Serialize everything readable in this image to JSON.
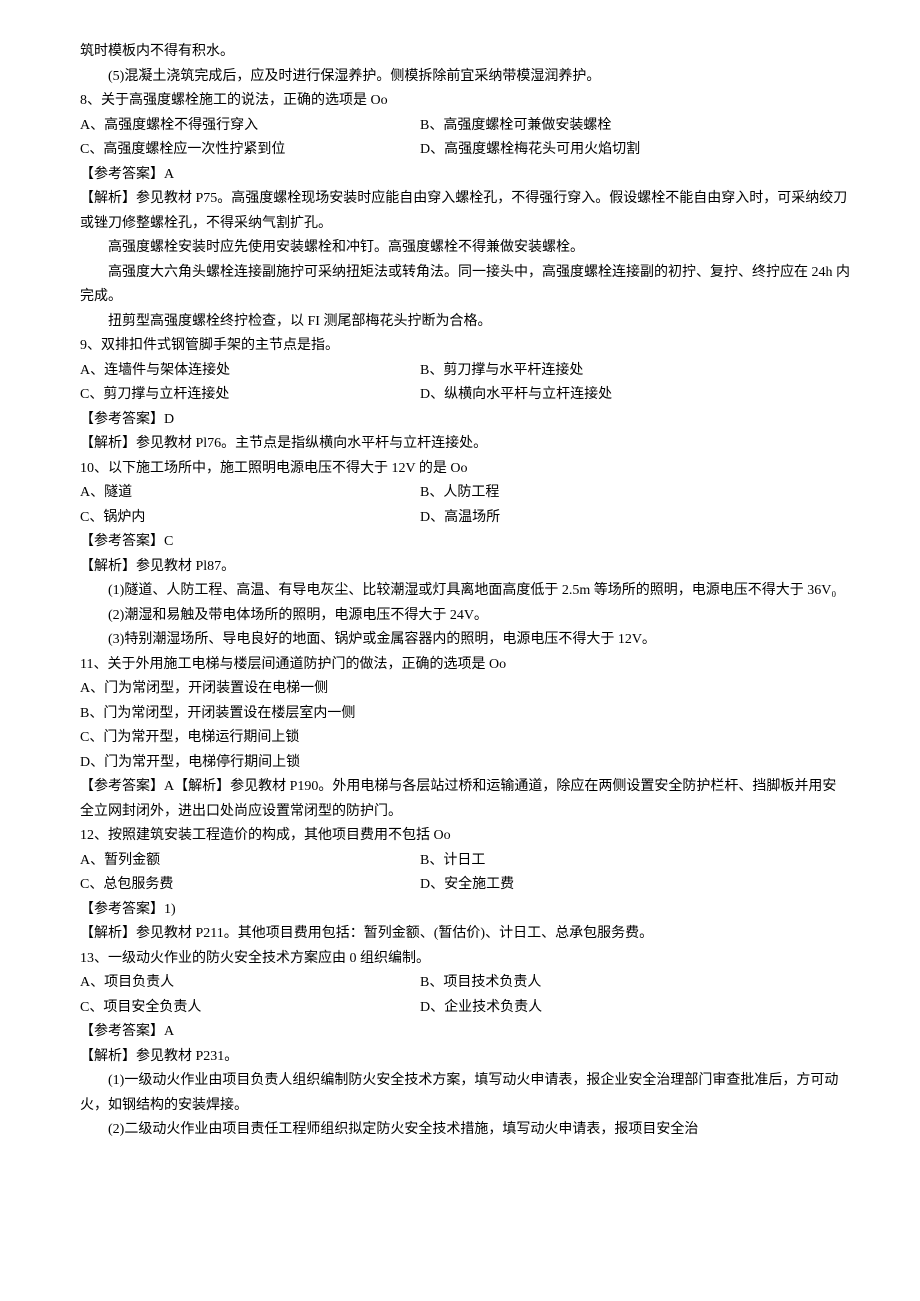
{
  "intro": {
    "l1": "筑时模板内不得有积水。",
    "l2": "(5)混凝土浇筑完成后，应及时进行保湿养护。侧模拆除前宜采纳带模湿润养护。"
  },
  "q8": {
    "stem": "8、关于高强度螺栓施工的说法，正确的选项是 Oo",
    "a": "A、高强度螺栓不得强行穿入",
    "b": "B、高强度螺栓可兼做安装螺栓",
    "c": "C、高强度螺栓应一次性拧紧到位",
    "d": "D、高强度螺栓梅花头可用火焰切割",
    "ans": "【参考答案】A",
    "exp1": "【解析】参见教材 P75。高强度螺栓现场安装时应能自由穿入螺栓孔，不得强行穿入。假设螺栓不能自由穿入时，可采纳绞刀或锉刀修整螺栓孔，不得采纳气割扩孔。",
    "exp2": "高强度螺栓安装时应先使用安装螺栓和冲钉。高强度螺栓不得兼做安装螺栓。",
    "exp3": "高强度大六角头螺栓连接副施拧可采纳扭矩法或转角法。同一接头中，高强度螺栓连接副的初拧、复拧、终拧应在 24h 内完成。",
    "exp4": "扭剪型高强度螺栓终拧检查，以 FI 测尾部梅花头拧断为合格。"
  },
  "q9": {
    "stem": "9、双排扣件式钢管脚手架的主节点是指。",
    "a": "A、连墙件与架体连接处",
    "b": "B、剪刀撑与水平杆连接处",
    "c": "C、剪刀撑与立杆连接处",
    "d": "D、纵横向水平杆与立杆连接处",
    "ans": "【参考答案】D",
    "exp1": "【解析】参见教材 Pl76。主节点是指纵横向水平杆与立杆连接处。"
  },
  "q10": {
    "stem": "10、以下施工场所中，施工照明电源电压不得大于 12V 的是 Oo",
    "a": "A、隧道",
    "b": "B、人防工程",
    "c": "C、锅炉内",
    "d": "D、高温场所",
    "ans": "【参考答案】C",
    "exp1": "【解析】参见教材 Pl87。",
    "exp2": "(1)隧道、人防工程、高温、有导电灰尘、比较潮湿或灯具离地面高度低于 2.5m 等场所的照明，电源电压不得大于 36V₀",
    "exp3": "(2)潮湿和易触及带电体场所的照明，电源电压不得大于 24V。",
    "exp4": "(3)特别潮湿场所、导电良好的地面、锅炉或金属容器内的照明，电源电压不得大于 12V。"
  },
  "q11": {
    "stem": "11、关于外用施工电梯与楼层间通道防护门的做法，正确的选项是 Oo",
    "a": "A、门为常闭型，开闭装置设在电梯一侧",
    "b": "B、门为常闭型，开闭装置设在楼层室内一侧",
    "c": "C、门为常开型，电梯运行期间上锁",
    "d": "D、门为常开型，电梯停行期间上锁",
    "ans_exp": "【参考答案】A【解析】参见教材 P190。外用电梯与各层站过桥和运输通道，除应在两侧设置安全防护栏杆、挡脚板并用安全立网封闭外，进出口处尚应设置常闭型的防护门。"
  },
  "q12": {
    "stem": "12、按照建筑安装工程造价的构成，其他项目费用不包括 Oo",
    "a": "A、暂列金额",
    "b": "B、计日工",
    "c": "C、总包服务费",
    "d": "D、安全施工费",
    "ans": "【参考答案】1)",
    "exp1": "【解析】参见教材 P211。其他项目费用包括：暂列金额、(暂估价)、计日工、总承包服务费。"
  },
  "q13": {
    "stem": "13、一级动火作业的防火安全技术方案应由 0 组织编制。",
    "a": "A、项目负责人",
    "b": "B、项目技术负责人",
    "c": "C、项目安全负责人",
    "d": "D、企业技术负责人",
    "ans": "【参考答案】A",
    "exp1": "【解析】参见教材 P231。",
    "exp2": "(1)一级动火作业由项目负责人组织编制防火安全技术方案，填写动火申请表，报企业安全治理部门审查批准后，方可动火，如钢结构的安装焊接。",
    "exp3": "(2)二级动火作业由项目责任工程师组织拟定防火安全技术措施，填写动火申请表，报项目安全治"
  }
}
